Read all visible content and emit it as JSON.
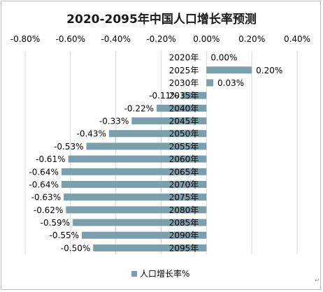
{
  "chart_data": {
    "type": "bar",
    "orientation": "horizontal",
    "title": "2020-2095年中国人口增长率预测",
    "xlabel": "",
    "ylabel": "",
    "xlim": [
      -0.8,
      0.4
    ],
    "x_tick_values": [
      -0.8,
      -0.6,
      -0.4,
      -0.2,
      0.0,
      0.2,
      0.4
    ],
    "x_tick_labels": [
      "-0.80%",
      "-0.60%",
      "-0.40%",
      "-0.20%",
      "0.00%",
      "0.20%",
      "0.40%"
    ],
    "x_axis_position": "top",
    "grid": true,
    "legend": "bottom",
    "categories": [
      "2020年",
      "2025年",
      "2030年",
      "2035年",
      "2040年",
      "2045年",
      "2050年",
      "2055年",
      "2060年",
      "2065年",
      "2070年",
      "2075年",
      "2080年",
      "2085年",
      "2090年",
      "2095年"
    ],
    "series": [
      {
        "name": "人口增长率%",
        "color": "#7a9fad",
        "values": [
          0.0,
          0.2,
          0.03,
          -0.11,
          -0.22,
          -0.33,
          -0.43,
          -0.53,
          -0.61,
          -0.64,
          -0.64,
          -0.63,
          -0.62,
          -0.59,
          -0.55,
          -0.5
        ],
        "data_labels": [
          "0.00%",
          "0.20%",
          "0.03%",
          "-0.11%",
          "-0.22%",
          "-0.33%",
          "-0.43%",
          "-0.53%",
          "-0.61%",
          "-0.64%",
          "-0.64%",
          "-0.63%",
          "-0.62%",
          "-0.59%",
          "-0.55%",
          "-0.50%"
        ]
      }
    ]
  },
  "colors": {
    "bar": "#7a9fad",
    "grid": "#d9d9d9",
    "text": "#000000",
    "title": "#1a1a1a",
    "frame": "#bfbfbf"
  },
  "corner_mark": "↵"
}
